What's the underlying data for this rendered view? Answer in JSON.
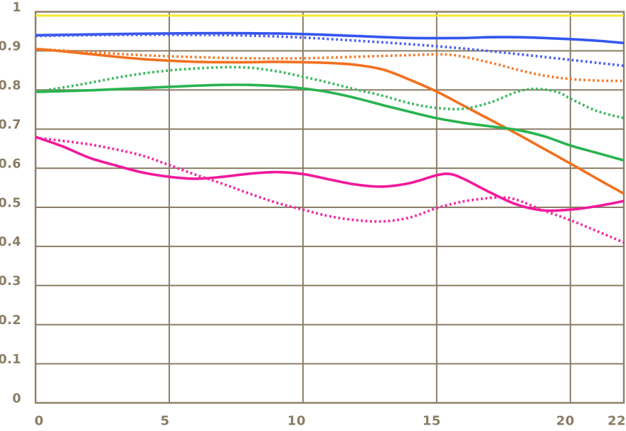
{
  "chart_data": {
    "type": "line",
    "title": "",
    "xlabel": "",
    "ylabel": "",
    "xlim": [
      0,
      22
    ],
    "ylim": [
      0,
      1
    ],
    "grid": true,
    "legend_position": "none",
    "background": "#ffffff",
    "grid_color": "#8b7d66",
    "label_color": "#8b7d66",
    "x_ticks": [
      {
        "value": 0,
        "label": "0"
      },
      {
        "value": 5,
        "label": "5"
      },
      {
        "value": 10,
        "label": "10"
      },
      {
        "value": 15,
        "label": "15"
      },
      {
        "value": 20,
        "label": "20"
      },
      {
        "value": 22,
        "label": "22"
      }
    ],
    "y_ticks": [
      {
        "value": 1.0,
        "label": "1"
      },
      {
        "value": 0.9,
        "label": "0.9"
      },
      {
        "value": 0.8,
        "label": "0.8"
      },
      {
        "value": 0.7,
        "label": "0.7"
      },
      {
        "value": 0.6,
        "label": "0.6"
      },
      {
        "value": 0.5,
        "label": "0.5"
      },
      {
        "value": 0.4,
        "label": "0.4"
      },
      {
        "value": 0.3,
        "label": "0.3"
      },
      {
        "value": 0.2,
        "label": "0.2"
      },
      {
        "value": 0.1,
        "label": "0.1"
      },
      {
        "value": 0.0,
        "label": "0"
      }
    ],
    "series": [
      {
        "name": "yellow-solid",
        "color": "#f2e821",
        "style": "solid",
        "width": 2.8,
        "points": [
          [
            0,
            0.99
          ],
          [
            5,
            0.99
          ],
          [
            10,
            0.99
          ],
          [
            15,
            0.99
          ],
          [
            20,
            0.99
          ],
          [
            22,
            0.99
          ]
        ]
      },
      {
        "name": "blue-solid",
        "color": "#3355ee",
        "style": "solid",
        "width": 3.6,
        "points": [
          [
            0,
            0.94
          ],
          [
            2,
            0.942
          ],
          [
            4,
            0.944
          ],
          [
            6,
            0.945
          ],
          [
            8,
            0.945
          ],
          [
            10,
            0.943
          ],
          [
            12,
            0.938
          ],
          [
            14,
            0.933
          ],
          [
            16,
            0.933
          ],
          [
            17,
            0.935
          ],
          [
            18,
            0.935
          ],
          [
            19,
            0.933
          ],
          [
            20,
            0.93
          ],
          [
            21,
            0.926
          ],
          [
            22,
            0.92
          ]
        ]
      },
      {
        "name": "blue-dotted",
        "color": "#4a5ef0",
        "style": "dotted",
        "width": 3.6,
        "points": [
          [
            0,
            0.938
          ],
          [
            2,
            0.94
          ],
          [
            4,
            0.941
          ],
          [
            6,
            0.941
          ],
          [
            8,
            0.939
          ],
          [
            10,
            0.934
          ],
          [
            12,
            0.926
          ],
          [
            14,
            0.917
          ],
          [
            16,
            0.906
          ],
          [
            18,
            0.892
          ],
          [
            20,
            0.877
          ],
          [
            22,
            0.862
          ]
        ]
      },
      {
        "name": "orange-solid",
        "color": "#f2701f",
        "style": "solid",
        "width": 3.6,
        "points": [
          [
            0,
            0.905
          ],
          [
            1,
            0.899
          ],
          [
            2,
            0.892
          ],
          [
            3,
            0.885
          ],
          [
            4,
            0.879
          ],
          [
            5,
            0.875
          ],
          [
            6,
            0.872
          ],
          [
            7,
            0.871
          ],
          [
            8,
            0.871
          ],
          [
            9,
            0.872
          ],
          [
            10,
            0.871
          ],
          [
            11,
            0.869
          ],
          [
            12,
            0.864
          ],
          [
            13,
            0.852
          ],
          [
            14,
            0.826
          ],
          [
            15,
            0.796
          ],
          [
            16,
            0.76
          ],
          [
            17,
            0.724
          ],
          [
            18,
            0.688
          ],
          [
            19,
            0.65
          ],
          [
            20,
            0.612
          ],
          [
            21,
            0.573
          ],
          [
            22,
            0.535
          ]
        ]
      },
      {
        "name": "orange-dotted",
        "color": "#f07a2a",
        "style": "dotted",
        "width": 3.6,
        "points": [
          [
            0,
            0.905
          ],
          [
            2,
            0.897
          ],
          [
            4,
            0.889
          ],
          [
            6,
            0.884
          ],
          [
            8,
            0.881
          ],
          [
            10,
            0.881
          ],
          [
            12,
            0.885
          ],
          [
            14,
            0.889
          ],
          [
            15.5,
            0.89
          ],
          [
            17,
            0.87
          ],
          [
            18,
            0.852
          ],
          [
            19,
            0.837
          ],
          [
            20,
            0.828
          ],
          [
            21,
            0.824
          ],
          [
            22,
            0.823
          ]
        ]
      },
      {
        "name": "green-solid",
        "color": "#29b34f",
        "style": "solid",
        "width": 3.6,
        "points": [
          [
            0,
            0.795
          ],
          [
            2,
            0.799
          ],
          [
            4,
            0.805
          ],
          [
            6,
            0.811
          ],
          [
            7,
            0.813
          ],
          [
            8,
            0.813
          ],
          [
            9,
            0.81
          ],
          [
            10,
            0.804
          ],
          [
            11,
            0.794
          ],
          [
            12,
            0.779
          ],
          [
            13,
            0.761
          ],
          [
            14,
            0.744
          ],
          [
            15,
            0.728
          ],
          [
            16,
            0.716
          ],
          [
            17,
            0.707
          ],
          [
            18,
            0.698
          ],
          [
            19,
            0.682
          ],
          [
            20,
            0.658
          ],
          [
            21,
            0.639
          ],
          [
            22,
            0.62
          ]
        ]
      },
      {
        "name": "green-dotted",
        "color": "#35b95a",
        "style": "dotted",
        "width": 3.6,
        "points": [
          [
            0,
            0.795
          ],
          [
            1,
            0.806
          ],
          [
            2,
            0.818
          ],
          [
            3,
            0.831
          ],
          [
            4,
            0.842
          ],
          [
            5,
            0.85
          ],
          [
            6,
            0.855
          ],
          [
            7,
            0.858
          ],
          [
            8,
            0.857
          ],
          [
            9,
            0.848
          ],
          [
            10,
            0.834
          ],
          [
            11,
            0.818
          ],
          [
            12,
            0.801
          ],
          [
            13,
            0.785
          ],
          [
            14,
            0.766
          ],
          [
            15,
            0.754
          ],
          [
            16,
            0.752
          ],
          [
            17,
            0.768
          ],
          [
            18,
            0.795
          ],
          [
            18.7,
            0.803
          ],
          [
            19.5,
            0.795
          ],
          [
            20,
            0.778
          ],
          [
            21,
            0.746
          ],
          [
            22,
            0.728
          ]
        ]
      },
      {
        "name": "magenta-solid",
        "color": "#f3189c",
        "style": "solid",
        "width": 3.6,
        "points": [
          [
            0,
            0.68
          ],
          [
            1,
            0.656
          ],
          [
            2,
            0.627
          ],
          [
            3,
            0.607
          ],
          [
            4,
            0.589
          ],
          [
            5,
            0.578
          ],
          [
            6,
            0.573
          ],
          [
            7,
            0.578
          ],
          [
            8,
            0.586
          ],
          [
            9,
            0.59
          ],
          [
            10,
            0.585
          ],
          [
            11,
            0.571
          ],
          [
            12,
            0.558
          ],
          [
            13,
            0.553
          ],
          [
            14,
            0.562
          ],
          [
            15,
            0.582
          ],
          [
            15.5,
            0.585
          ],
          [
            16,
            0.573
          ],
          [
            17,
            0.538
          ],
          [
            18,
            0.507
          ],
          [
            19,
            0.492
          ],
          [
            20,
            0.494
          ],
          [
            21,
            0.503
          ],
          [
            22,
            0.516
          ]
        ]
      },
      {
        "name": "magenta-dotted",
        "color": "#f3259f",
        "style": "dotted",
        "width": 3.6,
        "points": [
          [
            0,
            0.678
          ],
          [
            1,
            0.67
          ],
          [
            2,
            0.661
          ],
          [
            3,
            0.648
          ],
          [
            4,
            0.632
          ],
          [
            5,
            0.608
          ],
          [
            6,
            0.583
          ],
          [
            7,
            0.56
          ],
          [
            8,
            0.535
          ],
          [
            9,
            0.512
          ],
          [
            10,
            0.494
          ],
          [
            11,
            0.477
          ],
          [
            12,
            0.467
          ],
          [
            13,
            0.464
          ],
          [
            14,
            0.474
          ],
          [
            15,
            0.498
          ],
          [
            16,
            0.515
          ],
          [
            17,
            0.524
          ],
          [
            17.5,
            0.525
          ],
          [
            18,
            0.519
          ],
          [
            19,
            0.492
          ],
          [
            20,
            0.467
          ],
          [
            21,
            0.439
          ],
          [
            22,
            0.41
          ]
        ]
      }
    ]
  }
}
